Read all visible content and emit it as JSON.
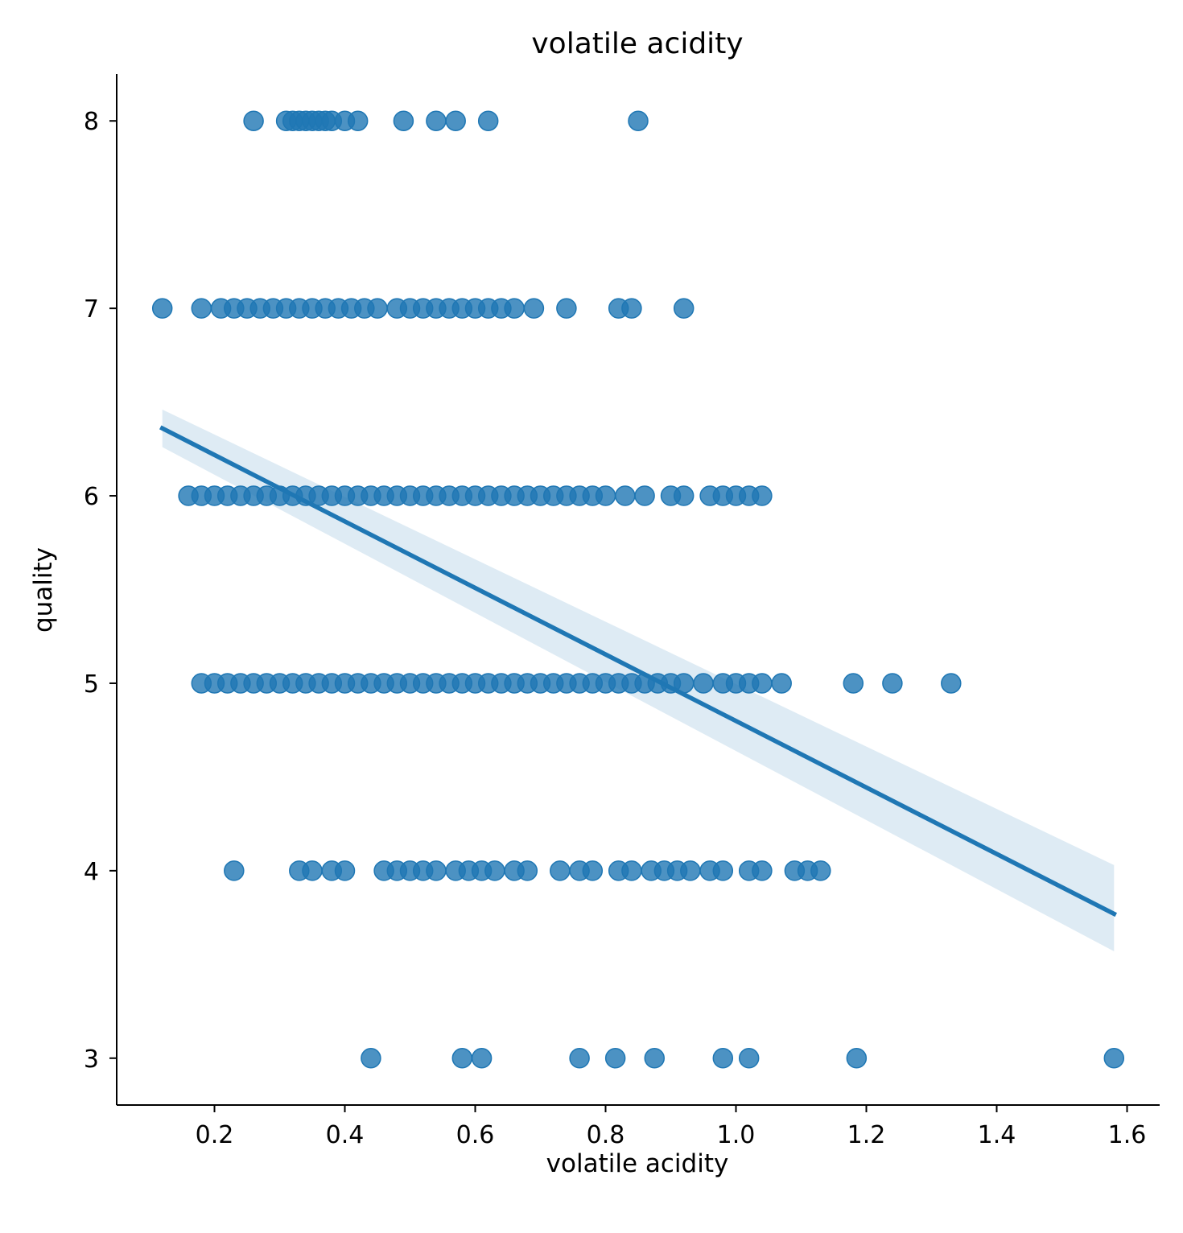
{
  "chart_data": {
    "type": "scatter",
    "title": "volatile acidity",
    "xlabel": "volatile acidity",
    "ylabel": "quality",
    "xlim": [
      0.05,
      1.65
    ],
    "ylim": [
      2.75,
      8.25
    ],
    "x_ticks": [
      0.2,
      0.4,
      0.6,
      0.8,
      1.0,
      1.2,
      1.4,
      1.6
    ],
    "x_tick_labels": [
      "0.2",
      "0.4",
      "0.6",
      "0.8",
      "1.0",
      "1.2",
      "1.4",
      "1.6"
    ],
    "y_ticks": [
      3,
      4,
      5,
      6,
      7,
      8
    ],
    "y_tick_labels": [
      "3",
      "4",
      "5",
      "6",
      "7",
      "8"
    ],
    "grid": false,
    "marker_color": "#1f77b4",
    "marker_opacity": 0.8,
    "series": [
      {
        "points": [
          [
            0.26,
            8
          ],
          [
            0.31,
            8
          ],
          [
            0.32,
            8
          ],
          [
            0.33,
            8
          ],
          [
            0.34,
            8
          ],
          [
            0.35,
            8
          ],
          [
            0.36,
            8
          ],
          [
            0.37,
            8
          ],
          [
            0.38,
            8
          ],
          [
            0.4,
            8
          ],
          [
            0.42,
            8
          ],
          [
            0.49,
            8
          ],
          [
            0.54,
            8
          ],
          [
            0.57,
            8
          ],
          [
            0.62,
            8
          ],
          [
            0.85,
            8
          ],
          [
            0.12,
            7
          ],
          [
            0.18,
            7
          ],
          [
            0.21,
            7
          ],
          [
            0.23,
            7
          ],
          [
            0.25,
            7
          ],
          [
            0.27,
            7
          ],
          [
            0.29,
            7
          ],
          [
            0.31,
            7
          ],
          [
            0.33,
            7
          ],
          [
            0.35,
            7
          ],
          [
            0.37,
            7
          ],
          [
            0.39,
            7
          ],
          [
            0.41,
            7
          ],
          [
            0.43,
            7
          ],
          [
            0.45,
            7
          ],
          [
            0.48,
            7
          ],
          [
            0.5,
            7
          ],
          [
            0.52,
            7
          ],
          [
            0.54,
            7
          ],
          [
            0.56,
            7
          ],
          [
            0.58,
            7
          ],
          [
            0.6,
            7
          ],
          [
            0.62,
            7
          ],
          [
            0.64,
            7
          ],
          [
            0.66,
            7
          ],
          [
            0.69,
            7
          ],
          [
            0.74,
            7
          ],
          [
            0.82,
            7
          ],
          [
            0.84,
            7
          ],
          [
            0.92,
            7
          ],
          [
            0.16,
            6
          ],
          [
            0.18,
            6
          ],
          [
            0.2,
            6
          ],
          [
            0.22,
            6
          ],
          [
            0.24,
            6
          ],
          [
            0.26,
            6
          ],
          [
            0.28,
            6
          ],
          [
            0.3,
            6
          ],
          [
            0.32,
            6
          ],
          [
            0.34,
            6
          ],
          [
            0.36,
            6
          ],
          [
            0.38,
            6
          ],
          [
            0.4,
            6
          ],
          [
            0.42,
            6
          ],
          [
            0.44,
            6
          ],
          [
            0.46,
            6
          ],
          [
            0.48,
            6
          ],
          [
            0.5,
            6
          ],
          [
            0.52,
            6
          ],
          [
            0.54,
            6
          ],
          [
            0.56,
            6
          ],
          [
            0.58,
            6
          ],
          [
            0.6,
            6
          ],
          [
            0.62,
            6
          ],
          [
            0.64,
            6
          ],
          [
            0.66,
            6
          ],
          [
            0.68,
            6
          ],
          [
            0.7,
            6
          ],
          [
            0.72,
            6
          ],
          [
            0.74,
            6
          ],
          [
            0.76,
            6
          ],
          [
            0.78,
            6
          ],
          [
            0.8,
            6
          ],
          [
            0.83,
            6
          ],
          [
            0.86,
            6
          ],
          [
            0.9,
            6
          ],
          [
            0.92,
            6
          ],
          [
            0.96,
            6
          ],
          [
            0.98,
            6
          ],
          [
            1.0,
            6
          ],
          [
            1.02,
            6
          ],
          [
            1.04,
            6
          ],
          [
            0.18,
            5
          ],
          [
            0.2,
            5
          ],
          [
            0.22,
            5
          ],
          [
            0.24,
            5
          ],
          [
            0.26,
            5
          ],
          [
            0.28,
            5
          ],
          [
            0.3,
            5
          ],
          [
            0.32,
            5
          ],
          [
            0.34,
            5
          ],
          [
            0.36,
            5
          ],
          [
            0.38,
            5
          ],
          [
            0.4,
            5
          ],
          [
            0.42,
            5
          ],
          [
            0.44,
            5
          ],
          [
            0.46,
            5
          ],
          [
            0.48,
            5
          ],
          [
            0.5,
            5
          ],
          [
            0.52,
            5
          ],
          [
            0.54,
            5
          ],
          [
            0.56,
            5
          ],
          [
            0.58,
            5
          ],
          [
            0.6,
            5
          ],
          [
            0.62,
            5
          ],
          [
            0.64,
            5
          ],
          [
            0.66,
            5
          ],
          [
            0.68,
            5
          ],
          [
            0.7,
            5
          ],
          [
            0.72,
            5
          ],
          [
            0.74,
            5
          ],
          [
            0.76,
            5
          ],
          [
            0.78,
            5
          ],
          [
            0.8,
            5
          ],
          [
            0.82,
            5
          ],
          [
            0.84,
            5
          ],
          [
            0.86,
            5
          ],
          [
            0.88,
            5
          ],
          [
            0.9,
            5
          ],
          [
            0.92,
            5
          ],
          [
            0.95,
            5
          ],
          [
            0.98,
            5
          ],
          [
            1.0,
            5
          ],
          [
            1.02,
            5
          ],
          [
            1.04,
            5
          ],
          [
            1.07,
            5
          ],
          [
            1.18,
            5
          ],
          [
            1.24,
            5
          ],
          [
            1.33,
            5
          ],
          [
            0.23,
            4
          ],
          [
            0.33,
            4
          ],
          [
            0.35,
            4
          ],
          [
            0.38,
            4
          ],
          [
            0.4,
            4
          ],
          [
            0.46,
            4
          ],
          [
            0.48,
            4
          ],
          [
            0.5,
            4
          ],
          [
            0.52,
            4
          ],
          [
            0.54,
            4
          ],
          [
            0.57,
            4
          ],
          [
            0.59,
            4
          ],
          [
            0.61,
            4
          ],
          [
            0.63,
            4
          ],
          [
            0.66,
            4
          ],
          [
            0.68,
            4
          ],
          [
            0.73,
            4
          ],
          [
            0.76,
            4
          ],
          [
            0.78,
            4
          ],
          [
            0.82,
            4
          ],
          [
            0.84,
            4
          ],
          [
            0.87,
            4
          ],
          [
            0.89,
            4
          ],
          [
            0.91,
            4
          ],
          [
            0.93,
            4
          ],
          [
            0.96,
            4
          ],
          [
            0.98,
            4
          ],
          [
            1.02,
            4
          ],
          [
            1.04,
            4
          ],
          [
            1.09,
            4
          ],
          [
            1.11,
            4
          ],
          [
            1.13,
            4
          ],
          [
            0.44,
            3
          ],
          [
            0.58,
            3
          ],
          [
            0.61,
            3
          ],
          [
            0.76,
            3
          ],
          [
            0.815,
            3
          ],
          [
            0.875,
            3
          ],
          [
            0.98,
            3
          ],
          [
            1.02,
            3
          ],
          [
            1.185,
            3
          ],
          [
            1.58,
            3
          ]
        ]
      }
    ],
    "regression": {
      "x": [
        0.12,
        1.58
      ],
      "y": [
        6.36,
        3.77
      ],
      "ci_lower": [
        6.26,
        3.57
      ],
      "ci_upper": [
        6.46,
        4.03
      ],
      "color": "#1f77b4",
      "band_opacity": 0.15
    }
  }
}
